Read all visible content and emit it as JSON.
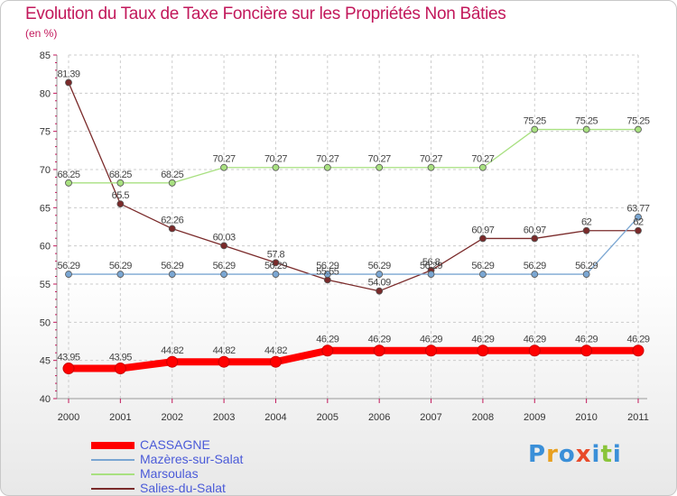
{
  "chart_data": {
    "type": "line",
    "title": "Evolution du Taux de Taxe Foncière sur les Propriétés Non Bâties",
    "ylabel": "(en %)",
    "xlabel": "",
    "ylim": [
      40,
      85
    ],
    "yticks": [
      40,
      45,
      50,
      55,
      60,
      65,
      70,
      75,
      80,
      85
    ],
    "categories": [
      "2000",
      "2001",
      "2002",
      "2003",
      "2004",
      "2005",
      "2006",
      "2007",
      "2008",
      "2009",
      "2010",
      "2011"
    ],
    "series": [
      {
        "name": "CASSAGNE",
        "color": "#ff0000",
        "values": [
          43.95,
          43.95,
          44.82,
          44.82,
          44.82,
          46.29,
          46.29,
          46.29,
          46.29,
          46.29,
          46.29,
          46.29
        ],
        "labels": [
          "43.95",
          "43.95",
          "44.82",
          "44.82",
          "44.82",
          "46.29",
          "46.29",
          "46.29",
          "46.29",
          "46.29",
          "46.29",
          "46.29"
        ]
      },
      {
        "name": "Mazères-sur-Salat",
        "color": "#7aa6d2",
        "values": [
          56.29,
          56.29,
          56.29,
          56.29,
          56.29,
          56.29,
          56.29,
          56.29,
          56.29,
          56.29,
          56.29,
          63.77
        ],
        "labels": [
          "56.29",
          "56.29",
          "56.29",
          "56.29",
          "56.29",
          "56.29",
          "56.29",
          "56.29",
          "56.29",
          "56.29",
          "56.29",
          "63.77"
        ]
      },
      {
        "name": "Marsoulas",
        "color": "#a8e080",
        "values": [
          68.25,
          68.25,
          68.25,
          70.27,
          70.27,
          70.27,
          70.27,
          70.27,
          70.27,
          75.25,
          75.25,
          75.25
        ],
        "labels": [
          "68.25",
          "68.25",
          "68.25",
          "70.27",
          "70.27",
          "70.27",
          "70.27",
          "70.27",
          "70.27",
          "75.25",
          "75.25",
          "75.25"
        ]
      },
      {
        "name": "Salies-du-Salat",
        "color": "#7a2a2a",
        "values": [
          81.39,
          65.5,
          62.26,
          60.03,
          57.8,
          55.55,
          54.09,
          56.8,
          60.97,
          60.97,
          62,
          62
        ],
        "labels": [
          "81.39",
          "65.5",
          "62.26",
          "60.03",
          "57.8",
          "55.55",
          "54.09",
          "56.8",
          "60.97",
          "60.97",
          "62",
          "62"
        ]
      }
    ],
    "legend_position": "bottom-left"
  },
  "logo": {
    "text": "Proxiti"
  }
}
